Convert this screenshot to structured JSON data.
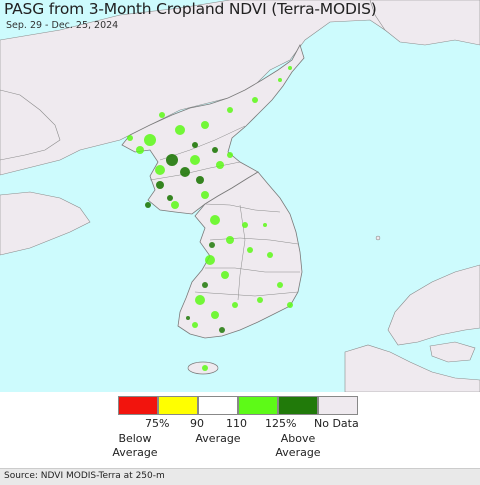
{
  "title": "PASG from 3-Month Cropland NDVI (Terra-MODIS)",
  "subtitle": "Sep. 29 - Dec. 25, 2024",
  "source": "Source: NDVI MODIS-Terra at 250-m",
  "colors": {
    "sea": "#cdfbfd",
    "land": "#efeaef",
    "border": "#7a7a7a",
    "very_below": "#f2140d",
    "below": "#ffff00",
    "average": "#ffffff",
    "above": "#5dfa17",
    "very_above": "#217a0a",
    "no_data": "#efeaef"
  },
  "legend": {
    "ticks": [
      "75%",
      "90",
      "110",
      "125%",
      "No Data"
    ],
    "categories": [
      {
        "line1": "Below",
        "line2": "Average"
      },
      {
        "line1": "Average",
        "line2": ""
      },
      {
        "line1": "Above",
        "line2": "Average"
      }
    ]
  }
}
